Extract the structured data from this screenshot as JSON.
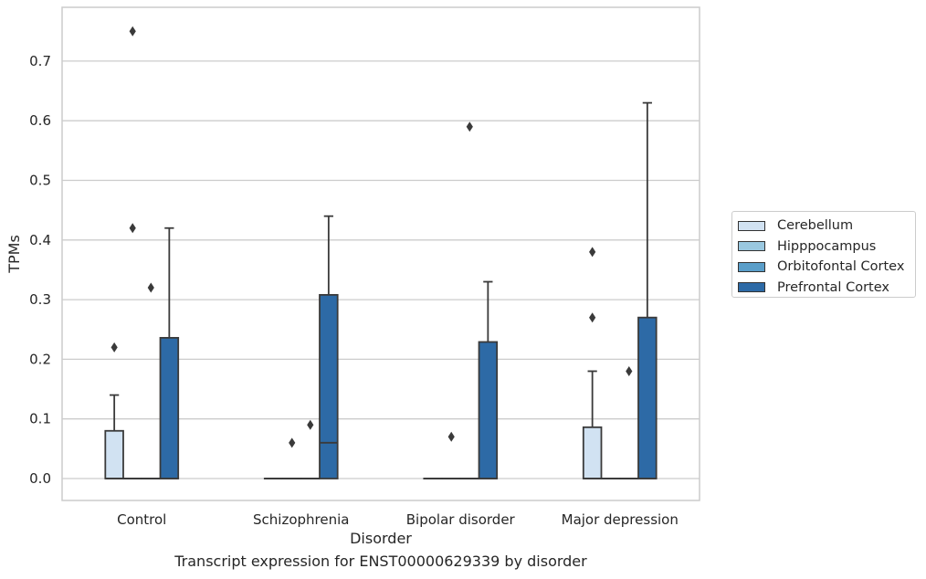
{
  "chart_data": {
    "type": "boxplot",
    "title": "",
    "caption": "Transcript expression for ENST00000629339 by disorder",
    "xlabel": "Disorder",
    "ylabel": "TPMs",
    "ylim": [
      -0.036,
      0.79
    ],
    "yticks": [
      "0.0",
      "0.1",
      "0.2",
      "0.3",
      "0.4",
      "0.5",
      "0.6",
      "0.7"
    ],
    "grid": true,
    "legend_position": "right",
    "categories": [
      "Control",
      "Schizophrenia",
      "Bipolar disorder",
      "Major depression"
    ],
    "series": [
      {
        "name": "Cerebellum",
        "color": "#d1e2f2",
        "boxes": [
          {
            "q1": 0.0,
            "median": 0.0,
            "q3": 0.08,
            "whisker_low": 0.0,
            "whisker_high": 0.14,
            "outliers": [
              0.22
            ]
          },
          {
            "q1": 0.0,
            "median": 0.0,
            "q3": 0.0,
            "whisker_low": 0.0,
            "whisker_high": 0.0,
            "outliers": []
          },
          {
            "q1": 0.0,
            "median": 0.0,
            "q3": 0.0,
            "whisker_low": 0.0,
            "whisker_high": 0.0,
            "outliers": []
          },
          {
            "q1": 0.0,
            "median": 0.0,
            "q3": 0.086,
            "whisker_low": 0.0,
            "whisker_high": 0.18,
            "outliers": [
              0.27,
              0.38
            ]
          }
        ]
      },
      {
        "name": "Hipppocampus",
        "color": "#9ac8e0",
        "boxes": [
          {
            "q1": 0.0,
            "median": 0.0,
            "q3": 0.0,
            "whisker_low": 0.0,
            "whisker_high": 0.0,
            "outliers": [
              0.75,
              0.42
            ]
          },
          {
            "q1": 0.0,
            "median": 0.0,
            "q3": 0.0,
            "whisker_low": 0.0,
            "whisker_high": 0.0,
            "outliers": [
              0.06
            ]
          },
          {
            "q1": 0.0,
            "median": 0.0,
            "q3": 0.0,
            "whisker_low": 0.0,
            "whisker_high": 0.0,
            "outliers": [
              0.07
            ]
          },
          {
            "q1": 0.0,
            "median": 0.0,
            "q3": 0.0,
            "whisker_low": 0.0,
            "whisker_high": 0.0,
            "outliers": []
          }
        ]
      },
      {
        "name": "Orbitofontal Cortex",
        "color": "#5a9ec9",
        "boxes": [
          {
            "q1": 0.0,
            "median": 0.0,
            "q3": 0.0,
            "whisker_low": 0.0,
            "whisker_high": 0.0,
            "outliers": [
              0.32
            ]
          },
          {
            "q1": 0.0,
            "median": 0.0,
            "q3": 0.0,
            "whisker_low": 0.0,
            "whisker_high": 0.0,
            "outliers": [
              0.09
            ]
          },
          {
            "q1": 0.0,
            "median": 0.0,
            "q3": 0.0,
            "whisker_low": 0.0,
            "whisker_high": 0.0,
            "outliers": [
              0.59
            ]
          },
          {
            "q1": 0.0,
            "median": 0.0,
            "q3": 0.0,
            "whisker_low": 0.0,
            "whisker_high": 0.0,
            "outliers": [
              0.18
            ]
          }
        ]
      },
      {
        "name": "Prefrontal Cortex",
        "color": "#2d6aa6",
        "boxes": [
          {
            "q1": 0.0,
            "median": 0.0,
            "q3": 0.236,
            "whisker_low": 0.0,
            "whisker_high": 0.42,
            "outliers": []
          },
          {
            "q1": 0.0,
            "median": 0.06,
            "q3": 0.308,
            "whisker_low": 0.0,
            "whisker_high": 0.44,
            "outliers": []
          },
          {
            "q1": 0.0,
            "median": 0.0,
            "q3": 0.229,
            "whisker_low": 0.0,
            "whisker_high": 0.33,
            "outliers": []
          },
          {
            "q1": 0.0,
            "median": 0.0,
            "q3": 0.27,
            "whisker_low": 0.0,
            "whisker_high": 0.63,
            "outliers": []
          }
        ]
      }
    ]
  }
}
